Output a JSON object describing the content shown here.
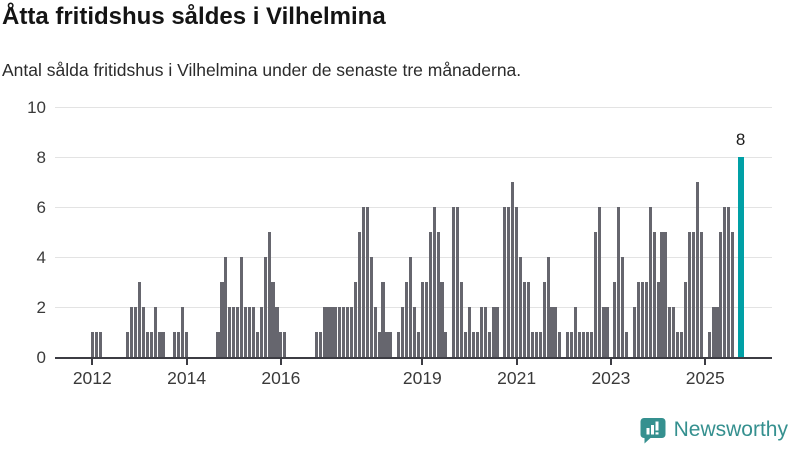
{
  "header": {
    "title": "Åtta fritidshus såldes i Vilhelmina",
    "subtitle": "Antal sålda fritidshus i Vilhelmina under de senaste tre månaderna."
  },
  "branding": {
    "name": "Newsworthy",
    "icon": "bar-chart-speech-bubble-icon",
    "color": "#35908f"
  },
  "colors": {
    "bar": "#66666e",
    "highlight": "#00a0a6",
    "grid": "#e3e3e3",
    "axis_line": "#3c3c43",
    "axis_text": "#3a3a3a",
    "title_text": "#141414"
  },
  "chart_data": {
    "type": "bar",
    "title": "Åtta fritidshus såldes i Vilhelmina",
    "subtitle": "Antal sålda fritidshus i Vilhelmina under de senaste tre månaderna.",
    "ylabel": "",
    "xlabel": "",
    "ylim": [
      0,
      10
    ],
    "y_ticks": [
      0,
      2,
      4,
      6,
      8,
      10
    ],
    "grid": true,
    "legend": false,
    "start_month": "2012-01",
    "end_month": "2025-10",
    "values_by_year": {
      "2012": [
        1,
        1,
        1,
        0,
        0,
        0,
        0,
        0,
        0,
        1,
        2,
        2
      ],
      "2013": [
        3,
        2,
        1,
        1,
        2,
        1,
        1,
        0,
        0,
        1,
        1,
        2
      ],
      "2014": [
        1,
        0,
        0,
        0,
        0,
        0,
        0,
        0,
        1,
        3,
        4,
        2
      ],
      "2015": [
        2,
        2,
        4,
        2,
        2,
        2,
        1,
        2,
        4,
        5,
        3,
        2
      ],
      "2016": [
        1,
        1,
        0,
        0,
        0,
        0,
        0,
        0,
        0,
        1,
        1,
        2
      ],
      "2017": [
        2,
        2,
        2,
        2,
        2,
        2,
        2,
        3,
        5,
        6,
        6,
        4
      ],
      "2018": [
        2,
        1,
        3,
        1,
        1,
        0,
        1,
        2,
        3,
        4,
        2,
        1
      ],
      "2019": [
        3,
        3,
        5,
        6,
        5,
        3,
        1,
        0,
        6,
        6,
        3,
        1
      ],
      "2020": [
        2,
        1,
        1,
        2,
        2,
        1,
        2,
        2,
        0,
        6,
        6,
        7
      ],
      "2021": [
        6,
        4,
        3,
        3,
        1,
        1,
        1,
        3,
        4,
        2,
        2,
        1
      ],
      "2022": [
        0,
        1,
        1,
        2,
        1,
        1,
        1,
        1,
        5,
        6,
        2,
        2
      ],
      "2023": [
        0,
        3,
        6,
        4,
        1,
        0,
        2,
        3,
        3,
        3,
        6,
        5
      ],
      "2024": [
        3,
        5,
        5,
        2,
        2,
        1,
        1,
        3,
        5,
        5,
        7,
        5
      ],
      "2025": [
        0,
        1,
        2,
        2,
        5,
        6,
        6,
        5,
        0,
        8
      ]
    },
    "x_tick_labels": [
      "2012",
      "2014",
      "2016",
      "2019",
      "2021",
      "2023",
      "2025"
    ],
    "x_tick_month_index": [
      0,
      24,
      48,
      84,
      108,
      132,
      156
    ],
    "highlight": {
      "month": "2025-10",
      "value": 8,
      "label": "8",
      "meaning": "senaste tre månaderna"
    }
  }
}
